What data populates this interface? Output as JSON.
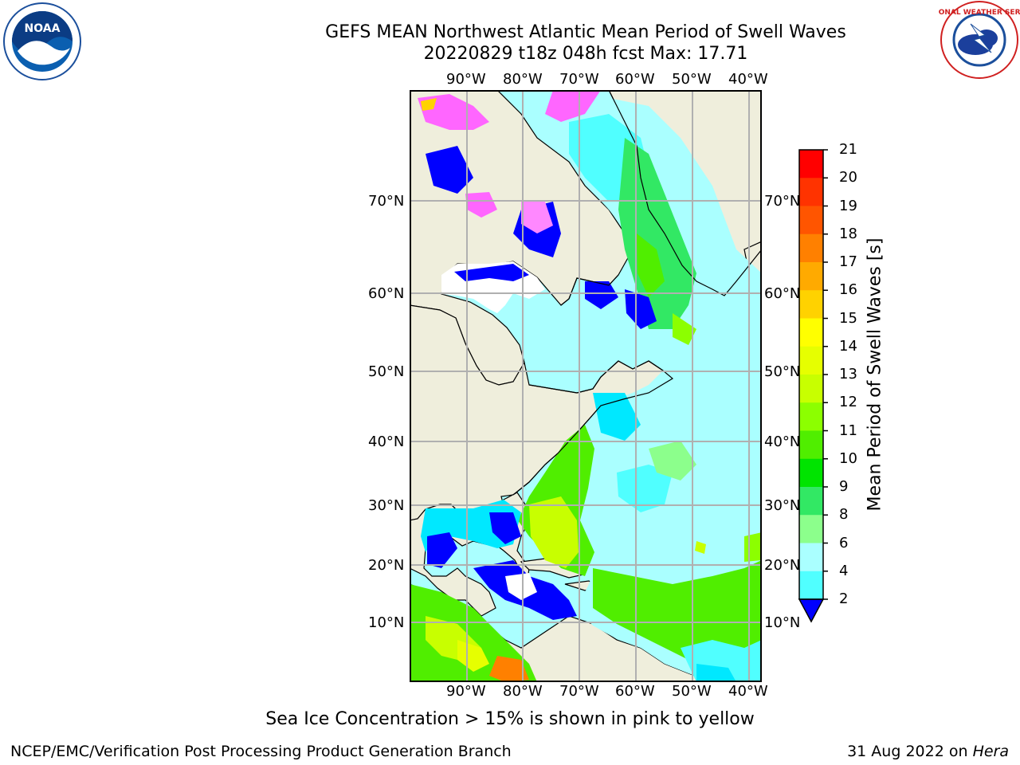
{
  "header": {
    "title_line1": "GEFS MEAN Northwest Atlantic Mean Period of Swell Waves",
    "title_line2": "20220829 t18z 048h fcst   Max: 17.71"
  },
  "logos": {
    "left": {
      "name": "noaa-logo",
      "text": "NOAA"
    },
    "right": {
      "name": "nws-logo",
      "text": "NATIONAL WEATHER SERVICE"
    }
  },
  "map": {
    "lon_labels_top": [
      "90°W",
      "80°W",
      "70°W",
      "60°W",
      "50°W",
      "40°W"
    ],
    "lon_labels_bottom": [
      "90°W",
      "80°W",
      "70°W",
      "60°W",
      "50°W",
      "40°W"
    ],
    "lat_labels_left": [
      "70°N",
      "60°N",
      "50°N",
      "40°N",
      "30°N",
      "20°N",
      "10°N"
    ],
    "lat_labels_right": [
      "70°N",
      "60°N",
      "50°N",
      "40°N",
      "30°N",
      "20°N",
      "10°N"
    ],
    "land_color": "#efeedc",
    "grid_color": "#b0b0b0"
  },
  "colorbar": {
    "label": "Mean Period of Swell Waves [s]",
    "ticks": [
      "21",
      "20",
      "19",
      "18",
      "17",
      "16",
      "15",
      "14",
      "13",
      "12",
      "11",
      "10",
      "9",
      "8",
      "6",
      "4",
      "2"
    ],
    "colors": [
      "#ff0000",
      "#ff3300",
      "#ff5500",
      "#ff8000",
      "#ffaa00",
      "#ffd200",
      "#ffff00",
      "#e6ff00",
      "#c8ff00",
      "#8cff00",
      "#50ee00",
      "#00e400",
      "#32e864",
      "#8cff8c",
      "#aaffff",
      "#50ffff",
      "#00e8ff",
      "#00b0ff",
      "#0064ff",
      "#0000ff"
    ]
  },
  "footer": {
    "note": "Sea Ice Concentration > 15% is shown in pink to yellow",
    "left": "NCEP/EMC/Verification Post Processing Product Generation Branch",
    "date": "31 Aug 2022 on ",
    "machine": "Hera"
  }
}
